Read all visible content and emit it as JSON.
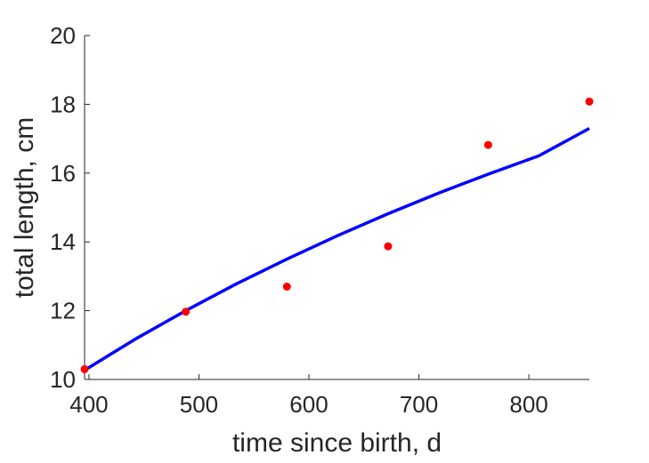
{
  "chart_data": {
    "type": "scatter",
    "title": "",
    "xlabel": "time since birth, d",
    "ylabel": "total length, cm",
    "xlim": [
      396,
      855
    ],
    "ylim": [
      10,
      20
    ],
    "x_ticks": [
      400,
      500,
      600,
      700,
      800
    ],
    "y_ticks": [
      10,
      12,
      14,
      16,
      18,
      20
    ],
    "grid": false,
    "legend": "none",
    "series": [
      {
        "kind": "points",
        "color": "#ff0000",
        "x": [
          396,
          488,
          580,
          672,
          763,
          855
        ],
        "y": [
          10.3,
          11.97,
          12.7,
          13.87,
          16.82,
          18.08
        ]
      },
      {
        "kind": "line",
        "color": "#0000ff",
        "x": [
          396,
          442,
          488,
          534,
          580,
          626,
          672,
          718,
          763,
          809,
          855
        ],
        "y": [
          10.27,
          11.17,
          12.0,
          12.78,
          13.5,
          14.18,
          14.82,
          15.42,
          15.97,
          16.5,
          17.3
        ]
      }
    ]
  }
}
